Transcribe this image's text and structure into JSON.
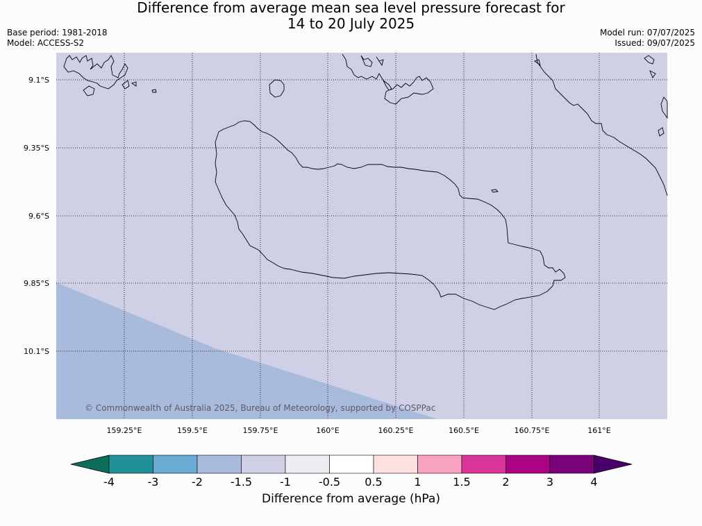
{
  "title_line1": "Difference from average mean sea level pressure forecast for",
  "title_line2": "14 to 20 July 2025",
  "base_period": "Base period: 1981-2018",
  "model": "Model: ACCESS-S2",
  "model_run": "Model run: 07/07/2025",
  "issued": "Issued: 09/07/2025",
  "copyright": "© Commonwealth of Australia 2025, Bureau of Meteorology, supported by COSPPac",
  "lat_labels": [
    "9.1°S",
    "9.35°S",
    "9.6°S",
    "9.85°S",
    "10.1°S"
  ],
  "lon_labels": [
    "159.25°E",
    "159.5°E",
    "159.75°E",
    "160°E",
    "160.25°E",
    "160.5°E",
    "160.75°E",
    "161°E"
  ],
  "colorbar_label": "Difference from average (hPa)",
  "colorbar_ticks": [
    "-4",
    "-3",
    "-2",
    "-1.5",
    "-1",
    "-0.5",
    "0.5",
    "1",
    "1.5",
    "2",
    "3",
    "4"
  ],
  "colorbar_colors": {
    "below_min": "#0e6e5c",
    "bins": [
      "#1f9197",
      "#6aabd3",
      "#a8bbdc",
      "#cfd0e5",
      "#efedf3",
      "#ffffff",
      "#fde0e0",
      "#f8a3c1",
      "#dc359a",
      "#ac0284",
      "#7a027a"
    ],
    "above_max": "#4a006a"
  },
  "map_fill": {
    "main": "#cfd0e5",
    "southwest": "#a8bbdc"
  }
}
